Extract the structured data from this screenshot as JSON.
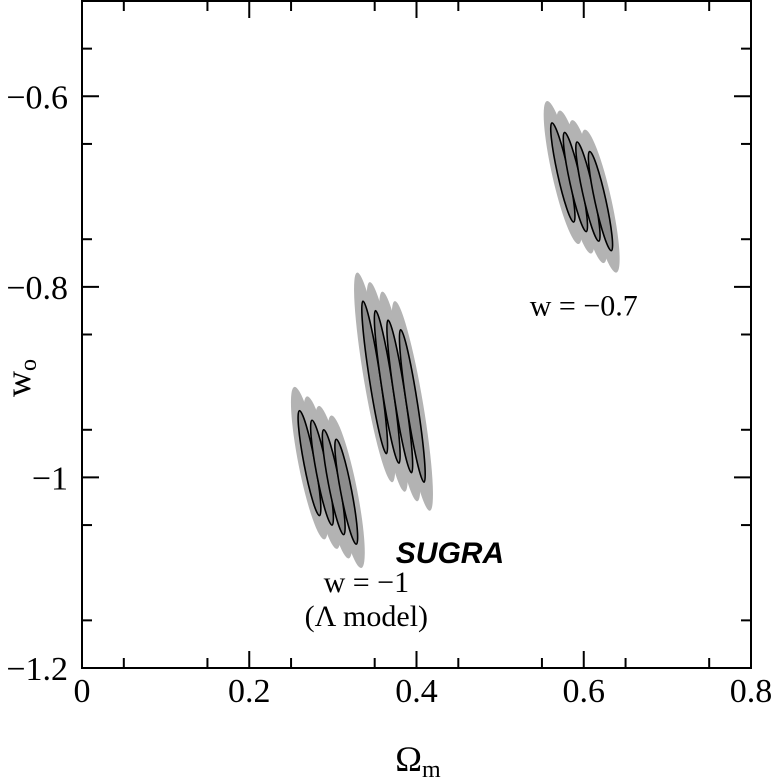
{
  "chart_data": {
    "type": "contour",
    "xlabel": "Ω",
    "xlabel_sub": "m",
    "ylabel": "w",
    "ylabel_sub": "o",
    "xlim": [
      0,
      0.8
    ],
    "ylim": [
      -1.2,
      -0.5
    ],
    "xticks": [
      0,
      0.2,
      0.4,
      0.6,
      0.8
    ],
    "xtick_labels": [
      "0",
      "0.2",
      "0.4",
      "0.6",
      "0.8"
    ],
    "yticks": [
      -1.2,
      -1,
      -0.8,
      -0.6
    ],
    "ytick_labels": [
      "-1.2",
      "-1",
      "-0.8",
      "-0.6"
    ],
    "grid": false,
    "colors": {
      "outer_fill": "#b3b3b3",
      "inner_fill": "#8c8c8c",
      "line": "#000000"
    },
    "groups": [
      {
        "id": "lambda",
        "label_lines": [
          "w = -1",
          "(Λ model)"
        ],
        "label_anchor": [
          0.34,
          -1.12
        ],
        "contours": [
          {
            "cx": 0.272,
            "cy": -0.985,
            "outer": [
              [
                0.254,
                -0.905
              ],
              [
                0.29,
                -1.065
              ]
            ],
            "inner": [
              [
                0.26,
                -0.93
              ],
              [
                0.284,
                -1.04
              ]
            ]
          },
          {
            "cx": 0.287,
            "cy": -0.995,
            "outer": [
              [
                0.269,
                -0.915
              ],
              [
                0.305,
                -1.075
              ]
            ],
            "inner": [
              [
                0.275,
                -0.94
              ],
              [
                0.299,
                -1.05
              ]
            ]
          },
          {
            "cx": 0.301,
            "cy": -1.005,
            "outer": [
              [
                0.283,
                -0.925
              ],
              [
                0.319,
                -1.085
              ]
            ],
            "inner": [
              [
                0.289,
                -0.95
              ],
              [
                0.313,
                -1.06
              ]
            ]
          },
          {
            "cx": 0.316,
            "cy": -1.015,
            "outer": [
              [
                0.298,
                -0.935
              ],
              [
                0.334,
                -1.095
              ]
            ],
            "inner": [
              [
                0.304,
                -0.96
              ],
              [
                0.328,
                -1.07
              ]
            ]
          }
        ]
      },
      {
        "id": "sugra",
        "label_lines": [
          "SUGRA"
        ],
        "label_anchor": [
          0.44,
          -1.09
        ],
        "contours": [
          {
            "cx": 0.35,
            "cy": -0.895,
            "outer": [
              [
                0.329,
                -0.785
              ],
              [
                0.371,
                -1.005
              ]
            ],
            "inner": [
              [
                0.336,
                -0.815
              ],
              [
                0.364,
                -0.975
              ]
            ]
          },
          {
            "cx": 0.365,
            "cy": -0.905,
            "outer": [
              [
                0.344,
                -0.795
              ],
              [
                0.386,
                -1.015
              ]
            ],
            "inner": [
              [
                0.351,
                -0.825
              ],
              [
                0.379,
                -0.985
              ]
            ]
          },
          {
            "cx": 0.38,
            "cy": -0.915,
            "outer": [
              [
                0.359,
                -0.805
              ],
              [
                0.401,
                -1.025
              ]
            ],
            "inner": [
              [
                0.366,
                -0.835
              ],
              [
                0.394,
                -0.995
              ]
            ]
          },
          {
            "cx": 0.395,
            "cy": -0.925,
            "outer": [
              [
                0.374,
                -0.815
              ],
              [
                0.416,
                -1.035
              ]
            ],
            "inner": [
              [
                0.381,
                -0.845
              ],
              [
                0.409,
                -1.005
              ]
            ]
          }
        ]
      },
      {
        "id": "w07",
        "label_lines": [
          "w = -0.7"
        ],
        "label_anchor": [
          0.6,
          -0.83
        ],
        "contours": [
          {
            "cx": 0.575,
            "cy": -0.68,
            "outer": [
              [
                0.556,
                -0.605
              ],
              [
                0.594,
                -0.755
              ]
            ],
            "inner": [
              [
                0.562,
                -0.628
              ],
              [
                0.588,
                -0.732
              ]
            ]
          },
          {
            "cx": 0.59,
            "cy": -0.69,
            "outer": [
              [
                0.571,
                -0.615
              ],
              [
                0.609,
                -0.765
              ]
            ],
            "inner": [
              [
                0.577,
                -0.638
              ],
              [
                0.603,
                -0.742
              ]
            ]
          },
          {
            "cx": 0.605,
            "cy": -0.7,
            "outer": [
              [
                0.586,
                -0.625
              ],
              [
                0.624,
                -0.775
              ]
            ],
            "inner": [
              [
                0.592,
                -0.648
              ],
              [
                0.618,
                -0.752
              ]
            ]
          },
          {
            "cx": 0.62,
            "cy": -0.71,
            "outer": [
              [
                0.601,
                -0.635
              ],
              [
                0.639,
                -0.785
              ]
            ],
            "inner": [
              [
                0.607,
                -0.658
              ],
              [
                0.633,
                -0.762
              ]
            ]
          }
        ]
      }
    ]
  }
}
